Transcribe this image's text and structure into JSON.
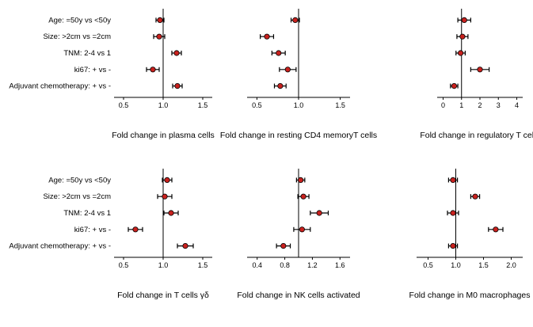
{
  "style": {
    "marker_fill": "#c9211e",
    "marker_stroke": "#000000",
    "line_color": "#000000",
    "background": "#ffffff"
  },
  "chart_data": [
    {
      "type": "scatter",
      "subtype": "forest-plot",
      "title": "Fold change in plasma cells",
      "categories": [
        "Age: =50y vs <50y",
        "Size: >2cm vs =2cm",
        "TNM: 2-4 vs 1",
        "ki67: + vs -",
        "Adjuvant chemotherapy: + vs -"
      ],
      "values": [
        0.96,
        0.95,
        1.17,
        0.87,
        1.18
      ],
      "errors": [
        0.05,
        0.07,
        0.06,
        0.08,
        0.06
      ],
      "xlim": [
        0.42,
        1.58
      ],
      "xticks": [
        0.5,
        1.0,
        1.5
      ],
      "xtick_labels": [
        "0.5",
        "1.0",
        "1.5"
      ],
      "ref_line": 1.0,
      "show_category_labels": true,
      "grid": false,
      "legend": "none"
    },
    {
      "type": "scatter",
      "subtype": "forest-plot",
      "title": "Fold change in resting CD4 memoryT cells",
      "categories": [
        "Age: =50y vs <50y",
        "Size: >2cm vs =2cm",
        "TNM: 2-4 vs 1",
        "ki67: + vs -",
        "Adjuvant chemotherapy: + vs -"
      ],
      "values": [
        0.96,
        0.62,
        0.76,
        0.87,
        0.78
      ],
      "errors": [
        0.05,
        0.08,
        0.08,
        0.1,
        0.07
      ],
      "xlim": [
        0.42,
        1.58
      ],
      "xticks": [
        0.5,
        1.0,
        1.5
      ],
      "xtick_labels": [
        "0.5",
        "1.0",
        "1.5"
      ],
      "ref_line": 1.0,
      "show_category_labels": false,
      "grid": false,
      "legend": "none"
    },
    {
      "type": "scatter",
      "subtype": "forest-plot",
      "title": "Fold change in regulatory T cells",
      "categories": [
        "Age: =50y vs <50y",
        "Size: >2cm vs =2cm",
        "TNM: 2-4 vs 1",
        "ki67: + vs -",
        "Adjuvant chemotherapy: + vs -"
      ],
      "values": [
        1.15,
        1.05,
        0.95,
        2.0,
        0.6
      ],
      "errors": [
        0.35,
        0.3,
        0.25,
        0.5,
        0.2
      ],
      "xlim": [
        -0.15,
        4.15
      ],
      "xticks": [
        0,
        1,
        2,
        3,
        4
      ],
      "xtick_labels": [
        "0",
        "1",
        "2",
        "3",
        "4"
      ],
      "ref_line": 1.0,
      "show_category_labels": false,
      "grid": false,
      "legend": "none"
    },
    {
      "type": "scatter",
      "subtype": "forest-plot",
      "title": "Fold change in T cells γδ",
      "categories": [
        "Age: =50y vs <50y",
        "Size: >2cm vs =2cm",
        "TNM: 2-4 vs 1",
        "ki67: + vs -",
        "Adjuvant chemotherapy: + vs -"
      ],
      "values": [
        1.05,
        1.02,
        1.1,
        0.65,
        1.28
      ],
      "errors": [
        0.06,
        0.09,
        0.09,
        0.09,
        0.1
      ],
      "xlim": [
        0.42,
        1.58
      ],
      "xticks": [
        0.5,
        1.0,
        1.5
      ],
      "xtick_labels": [
        "0.5",
        "1.0",
        "1.5"
      ],
      "ref_line": 1.0,
      "show_category_labels": true,
      "grid": false,
      "legend": "none"
    },
    {
      "type": "scatter",
      "subtype": "forest-plot",
      "title": "Fold change in NK cells activated",
      "categories": [
        "Age: =50y vs <50y",
        "Size: >2cm vs =2cm",
        "TNM: 2-4 vs 1",
        "ki67: + vs -",
        "Adjuvant chemotherapy: + vs -"
      ],
      "values": [
        1.03,
        1.07,
        1.3,
        1.05,
        0.78
      ],
      "errors": [
        0.06,
        0.08,
        0.13,
        0.12,
        0.1
      ],
      "xlim": [
        0.3,
        1.7
      ],
      "xticks": [
        0.4,
        0.8,
        1.2,
        1.6
      ],
      "xtick_labels": [
        "0.4",
        "0.8",
        "1.2",
        "1.6"
      ],
      "ref_line": 1.0,
      "show_category_labels": false,
      "grid": false,
      "legend": "none"
    },
    {
      "type": "scatter",
      "subtype": "forest-plot",
      "title": "Fold change in M0 macrophages",
      "categories": [
        "Age: =50y vs <50y",
        "Size: >2cm vs =2cm",
        "TNM: 2-4 vs 1",
        "ki67: + vs -",
        "Adjuvant chemotherapy: + vs -"
      ],
      "values": [
        0.95,
        1.35,
        0.95,
        1.72,
        0.95
      ],
      "errors": [
        0.08,
        0.08,
        0.1,
        0.13,
        0.08
      ],
      "xlim": [
        0.35,
        2.15
      ],
      "xticks": [
        0.5,
        1.0,
        1.5,
        2.0
      ],
      "xtick_labels": [
        "0.5",
        "1.0",
        "1.5",
        "2.0"
      ],
      "ref_line": 1.0,
      "show_category_labels": false,
      "grid": false,
      "legend": "none"
    }
  ]
}
